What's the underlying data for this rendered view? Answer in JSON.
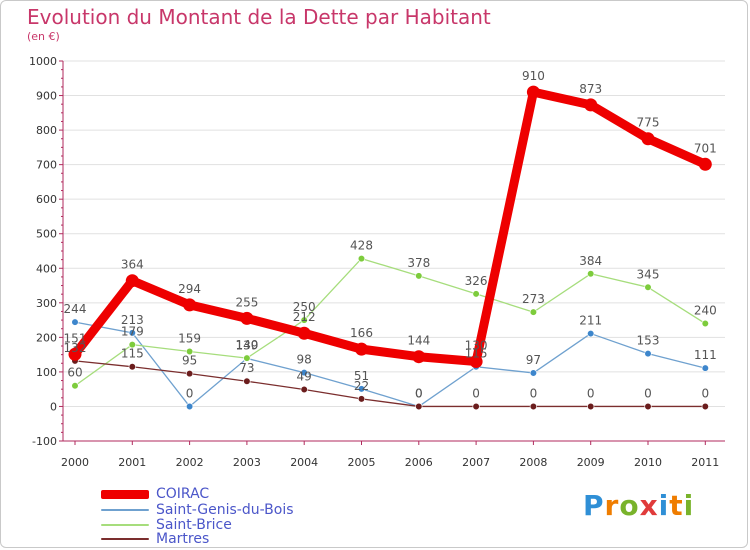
{
  "title": "Evolution du Montant de la Dette par Habitant",
  "subtitle": "(en €)",
  "logo": {
    "text": "Proxiti",
    "letter_colors": [
      "#2f8fd6",
      "#ef7d00",
      "#79b32b",
      "#e03b3b",
      "#2f8fd6",
      "#ef7d00",
      "#79b32b"
    ]
  },
  "colors": {
    "title": "#c8376a",
    "legend_text": "#4b56c9",
    "axis": "#b02a5d",
    "grid": "#e1e1e1",
    "value_label": "#555555"
  },
  "chart_data": {
    "type": "line",
    "title": "Evolution du Montant de la Dette par Habitant",
    "subtitle": "(en €)",
    "x": [
      "2000",
      "2001",
      "2002",
      "2003",
      "2004",
      "2005",
      "2006",
      "2007",
      "2008",
      "2009",
      "2010",
      "2011"
    ],
    "y_ticks": [
      "-100",
      "0",
      "100",
      "200",
      "300",
      "400",
      "500",
      "600",
      "700",
      "800",
      "900",
      "1000"
    ],
    "ylim": [
      -100,
      1000
    ],
    "grid": "horizontal",
    "legend_position": "bottom-left",
    "series": [
      {
        "name": "COIRAC",
        "values": [
          151,
          364,
          294,
          255,
          212,
          166,
          144,
          130,
          910,
          873,
          775,
          701
        ],
        "color": "#ee0000",
        "marker": "#ee0000",
        "emphasis": true
      },
      {
        "name": "Saint-Genis-du-Bois",
        "values": [
          244,
          213,
          0,
          139,
          98,
          51,
          0,
          115,
          97,
          211,
          153,
          111
        ],
        "color": "#6fa1cf",
        "marker": "#3d86cc",
        "emphasis": false
      },
      {
        "name": "Saint-Brice",
        "values": [
          60,
          179,
          159,
          140,
          250,
          428,
          378,
          326,
          273,
          384,
          345,
          240
        ],
        "color": "#a6dd7c",
        "marker": "#7dcc3c",
        "emphasis": false
      },
      {
        "name": "Martres",
        "values": [
          132,
          115,
          95,
          73,
          49,
          22,
          0,
          0,
          0,
          0,
          0,
          0
        ],
        "color": "#7b2e2e",
        "marker": "#6b1d1d",
        "emphasis": false
      }
    ]
  }
}
